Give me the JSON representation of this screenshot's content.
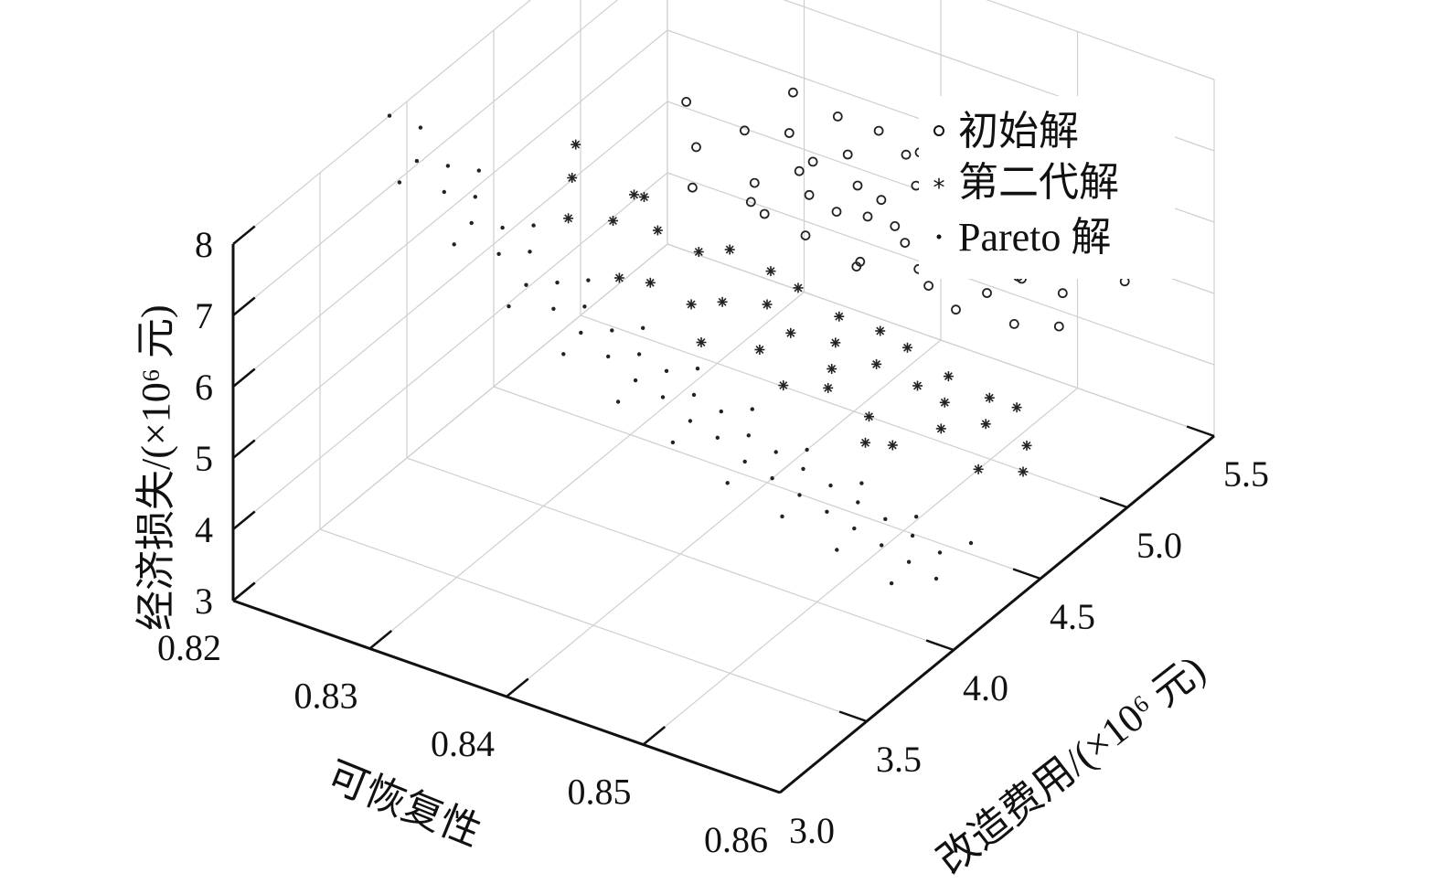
{
  "chart_data": {
    "type": "scatter",
    "projection": "3d",
    "grid": true,
    "legend_position": "top-right",
    "x_axis": {
      "label": "可恢复性",
      "ticks": [
        "0.82",
        "0.83",
        "0.84",
        "0.85",
        "0.86"
      ],
      "range": [
        0.82,
        0.86
      ]
    },
    "y_axis": {
      "label": "改造费用/(×10⁶ 元)",
      "ticks": [
        "3.0",
        "3.5",
        "4.0",
        "4.5",
        "5.0",
        "5.5"
      ],
      "range": [
        3.0,
        5.5
      ]
    },
    "z_axis": {
      "label": "经济损失/(×10⁶ 元)",
      "ticks": [
        "3",
        "4",
        "5",
        "6",
        "7",
        "8"
      ],
      "range": [
        3,
        8
      ]
    },
    "series": [
      {
        "name": "初始解",
        "marker": "circle",
        "points": [
          [
            0.829,
            4.9,
            6.8
          ],
          [
            0.831,
            4.8,
            6.5
          ],
          [
            0.832,
            5.0,
            6.4
          ],
          [
            0.833,
            5.2,
            6.6
          ],
          [
            0.834,
            5.1,
            6.3
          ],
          [
            0.835,
            5.3,
            6.2
          ],
          [
            0.836,
            5.0,
            6.1
          ],
          [
            0.837,
            5.2,
            6.0
          ],
          [
            0.838,
            4.9,
            6.1
          ],
          [
            0.839,
            5.1,
            5.9
          ],
          [
            0.84,
            5.3,
            6.0
          ],
          [
            0.841,
            5.0,
            5.8
          ],
          [
            0.842,
            5.2,
            5.9
          ],
          [
            0.843,
            4.8,
            5.7
          ],
          [
            0.844,
            5.1,
            5.8
          ],
          [
            0.845,
            5.3,
            5.7
          ],
          [
            0.846,
            4.9,
            5.6
          ],
          [
            0.847,
            5.2,
            5.7
          ],
          [
            0.848,
            5.0,
            5.5
          ],
          [
            0.849,
            5.3,
            5.6
          ],
          [
            0.85,
            4.8,
            5.5
          ],
          [
            0.851,
            5.1,
            5.4
          ],
          [
            0.852,
            5.2,
            5.5
          ],
          [
            0.853,
            4.9,
            5.3
          ],
          [
            0.854,
            5.1,
            5.4
          ],
          [
            0.855,
            5.0,
            5.2
          ],
          [
            0.836,
            4.8,
            5.9
          ],
          [
            0.838,
            5.3,
            6.2
          ],
          [
            0.84,
            4.9,
            6.0
          ],
          [
            0.842,
            5.0,
            6.1
          ],
          [
            0.844,
            4.7,
            5.9
          ],
          [
            0.846,
            5.3,
            5.9
          ],
          [
            0.848,
            4.8,
            5.7
          ],
          [
            0.85,
            5.2,
            5.8
          ],
          [
            0.852,
            5.0,
            5.7
          ],
          [
            0.834,
            4.9,
            6.0
          ],
          [
            0.832,
            4.7,
            6.2
          ],
          [
            0.839,
            4.8,
            5.8
          ],
          [
            0.843,
            5.2,
            6.0
          ],
          [
            0.847,
            5.0,
            5.9
          ],
          [
            0.851,
            4.9,
            5.6
          ],
          [
            0.837,
            5.0,
            6.3
          ],
          [
            0.841,
            5.3,
            6.1
          ],
          [
            0.845,
            4.9,
            5.9
          ],
          [
            0.849,
            5.1,
            5.8
          ],
          [
            0.853,
            5.2,
            5.6
          ],
          [
            0.856,
            5.3,
            5.3
          ],
          [
            0.835,
            4.8,
            6.0
          ],
          [
            0.843,
            5.0,
            5.8
          ],
          [
            0.848,
            5.2,
            5.8
          ]
        ]
      },
      {
        "name": "第二代解",
        "marker": "star",
        "points": [
          [
            0.826,
            4.5,
            6.8
          ],
          [
            0.828,
            4.3,
            6.3
          ],
          [
            0.83,
            4.4,
            6.2
          ],
          [
            0.832,
            4.5,
            6.0
          ],
          [
            0.834,
            4.3,
            5.8
          ],
          [
            0.836,
            4.6,
            5.8
          ],
          [
            0.838,
            4.4,
            5.6
          ],
          [
            0.84,
            4.5,
            5.5
          ],
          [
            0.842,
            4.3,
            5.4
          ],
          [
            0.844,
            4.6,
            5.4
          ],
          [
            0.846,
            4.4,
            5.2
          ],
          [
            0.848,
            4.5,
            5.2
          ],
          [
            0.85,
            4.3,
            5.0
          ],
          [
            0.852,
            4.6,
            5.1
          ],
          [
            0.854,
            4.4,
            4.9
          ],
          [
            0.856,
            4.5,
            4.9
          ],
          [
            0.858,
            4.3,
            4.8
          ],
          [
            0.86,
            4.4,
            4.7
          ],
          [
            0.829,
            4.6,
            6.1
          ],
          [
            0.833,
            4.2,
            6.0
          ],
          [
            0.837,
            4.3,
            5.7
          ],
          [
            0.841,
            4.6,
            5.6
          ],
          [
            0.845,
            4.2,
            5.3
          ],
          [
            0.849,
            4.6,
            5.3
          ],
          [
            0.853,
            4.2,
            5.0
          ],
          [
            0.857,
            4.6,
            5.0
          ],
          [
            0.831,
            4.5,
            6.4
          ],
          [
            0.835,
            4.5,
            5.9
          ],
          [
            0.839,
            4.6,
            5.7
          ],
          [
            0.843,
            4.4,
            5.5
          ],
          [
            0.847,
            4.3,
            5.2
          ],
          [
            0.851,
            4.5,
            5.1
          ],
          [
            0.855,
            4.6,
            5.0
          ],
          [
            0.839,
            4.2,
            5.5
          ],
          [
            0.847,
            4.6,
            5.4
          ],
          [
            0.851,
            4.2,
            4.9
          ],
          [
            0.859,
            4.5,
            4.8
          ],
          [
            0.827,
            4.4,
            6.6
          ],
          [
            0.845,
            4.5,
            5.3
          ],
          [
            0.853,
            4.5,
            5.0
          ]
        ]
      },
      {
        "name": "Pareto 解",
        "marker": "dot",
        "points": [
          [
            0.82,
            3.9,
            8.0
          ],
          [
            0.822,
            3.9,
            7.5
          ],
          [
            0.824,
            3.9,
            7.2
          ],
          [
            0.826,
            3.9,
            6.9
          ],
          [
            0.828,
            3.9,
            6.6
          ],
          [
            0.83,
            3.9,
            6.3
          ],
          [
            0.832,
            3.9,
            6.1
          ],
          [
            0.834,
            3.9,
            5.9
          ],
          [
            0.836,
            3.9,
            5.7
          ],
          [
            0.838,
            3.9,
            5.5
          ],
          [
            0.84,
            3.9,
            5.4
          ],
          [
            0.842,
            3.9,
            5.2
          ],
          [
            0.844,
            3.9,
            5.1
          ],
          [
            0.846,
            3.9,
            4.9
          ],
          [
            0.848,
            3.9,
            4.8
          ],
          [
            0.85,
            3.9,
            4.7
          ],
          [
            0.852,
            3.9,
            4.6
          ],
          [
            0.854,
            3.9,
            4.5
          ],
          [
            0.856,
            3.9,
            4.4
          ],
          [
            0.858,
            3.9,
            4.3
          ],
          [
            0.86,
            3.9,
            4.2
          ],
          [
            0.821,
            4.0,
            7.7
          ],
          [
            0.823,
            4.0,
            7.3
          ],
          [
            0.825,
            4.0,
            7.0
          ],
          [
            0.827,
            4.0,
            6.7
          ],
          [
            0.829,
            4.0,
            6.5
          ],
          [
            0.831,
            4.0,
            6.2
          ],
          [
            0.833,
            4.0,
            6.0
          ],
          [
            0.835,
            4.0,
            5.8
          ],
          [
            0.837,
            4.0,
            5.6
          ],
          [
            0.839,
            4.0,
            5.5
          ],
          [
            0.841,
            4.0,
            5.3
          ],
          [
            0.843,
            4.0,
            5.2
          ],
          [
            0.845,
            4.0,
            5.0
          ],
          [
            0.847,
            4.0,
            4.9
          ],
          [
            0.849,
            4.0,
            4.8
          ],
          [
            0.851,
            4.0,
            4.7
          ],
          [
            0.853,
            4.0,
            4.6
          ],
          [
            0.855,
            4.0,
            4.5
          ],
          [
            0.857,
            4.0,
            4.4
          ],
          [
            0.859,
            4.0,
            4.3
          ],
          [
            0.822,
            3.8,
            7.4
          ],
          [
            0.826,
            3.8,
            6.8
          ],
          [
            0.83,
            3.8,
            6.2
          ],
          [
            0.834,
            3.8,
            5.8
          ],
          [
            0.838,
            3.8,
            5.4
          ],
          [
            0.842,
            3.8,
            5.1
          ],
          [
            0.846,
            3.8,
            4.8
          ],
          [
            0.85,
            3.8,
            4.6
          ],
          [
            0.854,
            3.8,
            4.4
          ],
          [
            0.858,
            3.8,
            4.2
          ],
          [
            0.824,
            4.1,
            7.1
          ],
          [
            0.828,
            4.1,
            6.6
          ],
          [
            0.832,
            4.1,
            6.1
          ],
          [
            0.836,
            4.1,
            5.7
          ],
          [
            0.84,
            4.1,
            5.4
          ],
          [
            0.844,
            4.1,
            5.1
          ],
          [
            0.848,
            4.1,
            4.8
          ],
          [
            0.852,
            4.1,
            4.6
          ],
          [
            0.856,
            4.1,
            4.4
          ],
          [
            0.86,
            4.1,
            4.3
          ]
        ]
      }
    ]
  }
}
